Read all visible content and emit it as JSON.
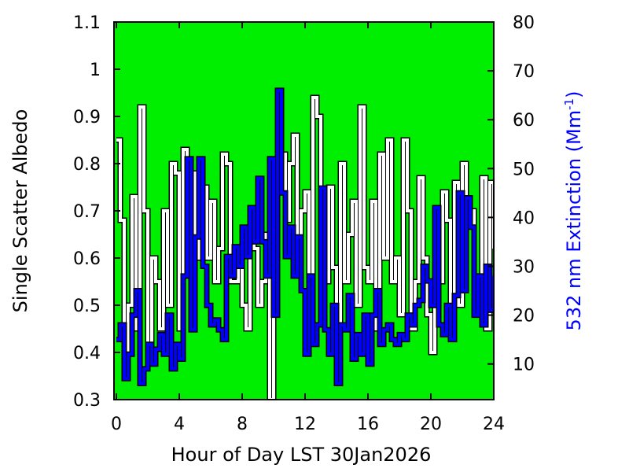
{
  "chart_data": {
    "type": "line",
    "title": "",
    "xlabel": "Hour of Day LST 30Jan2026",
    "ylabel": "Single Scatter Albedo",
    "y2label_main": "532 nm Extinction (Mm",
    "y2label_sup": "-1",
    "y2label_close": ")",
    "xlim": [
      -0.15,
      24
    ],
    "ylim": [
      0.3,
      1.1
    ],
    "y2lim": [
      2.7,
      80
    ],
    "xticks": [
      "0",
      "4",
      "8",
      "12",
      "16",
      "20",
      "24"
    ],
    "xtick_values": [
      0,
      4,
      8,
      12,
      16,
      20,
      24
    ],
    "yticks": [
      "0.3",
      "0.4",
      "0.5",
      "0.6",
      "0.7",
      "0.8",
      "0.9",
      "1",
      "1.1"
    ],
    "ytick_values": [
      0.3,
      0.4,
      0.5,
      0.6,
      0.7,
      0.8,
      0.9,
      1.0,
      1.1
    ],
    "y2ticks": [
      "10",
      "20",
      "30",
      "40",
      "50",
      "60",
      "70",
      "80"
    ],
    "y2tick_values": [
      10,
      20,
      30,
      40,
      50,
      60,
      70,
      80
    ],
    "background": "#00ee00",
    "grid": false,
    "x_step_hours": 0.25,
    "series": [
      {
        "name": "Single Scatter Albedo",
        "axis": "left",
        "color": "#ffffff",
        "values": [
          0.85,
          0.68,
          0.35,
          0.5,
          0.73,
          0.45,
          0.92,
          0.7,
          0.4,
          0.6,
          0.55,
          0.45,
          0.7,
          0.5,
          0.8,
          0.78,
          0.45,
          0.83,
          0.65,
          0.55,
          0.78,
          0.6,
          0.75,
          0.6,
          0.72,
          0.55,
          0.62,
          0.82,
          0.8,
          0.55,
          0.55,
          0.6,
          0.5,
          0.45,
          0.68,
          0.62,
          0.5,
          0.55,
          0.65,
          0.3,
          0.62,
          0.95,
          0.82,
          0.68,
          0.8,
          0.86,
          0.6,
          0.7,
          0.74,
          0.45,
          0.94,
          0.9,
          0.6,
          0.55,
          0.75,
          0.58,
          0.4,
          0.8,
          0.55,
          0.65,
          0.72,
          0.5,
          0.92,
          0.58,
          0.55,
          0.72,
          0.45,
          0.82,
          0.6,
          0.85,
          0.55,
          0.6,
          0.48,
          0.85,
          0.7,
          0.45,
          0.55,
          0.77,
          0.6,
          0.48,
          0.4,
          0.5,
          0.55,
          0.74,
          0.68,
          0.45,
          0.76,
          0.5,
          0.8,
          0.68,
          0.7,
          0.48,
          0.55,
          0.77,
          0.45,
          0.76,
          0.62
        ]
      },
      {
        "name": "532 nm Extinction",
        "axis": "right",
        "color": "#0000ff",
        "values": [
          15,
          18,
          7,
          12,
          20,
          25,
          6,
          9,
          14,
          10,
          13,
          16,
          12,
          20,
          9,
          14,
          11,
          28,
          52,
          17,
          36,
          52,
          30,
          22,
          18,
          19,
          17,
          15,
          32,
          28,
          34,
          30,
          38,
          32,
          42,
          35,
          48,
          35,
          28,
          52,
          20,
          66,
          45,
          32,
          38,
          28,
          36,
          25,
          12,
          28,
          14,
          18,
          46,
          17,
          12,
          22,
          6,
          18,
          17,
          24,
          11,
          16,
          12,
          20,
          10,
          20,
          25,
          14,
          17,
          18,
          15,
          14,
          16,
          15,
          20,
          18,
          22,
          23,
          30,
          27,
          22,
          42,
          18,
          16,
          22,
          15,
          24,
          45,
          25,
          44,
          38,
          20,
          28,
          18,
          30,
          21,
          28
        ]
      }
    ]
  }
}
